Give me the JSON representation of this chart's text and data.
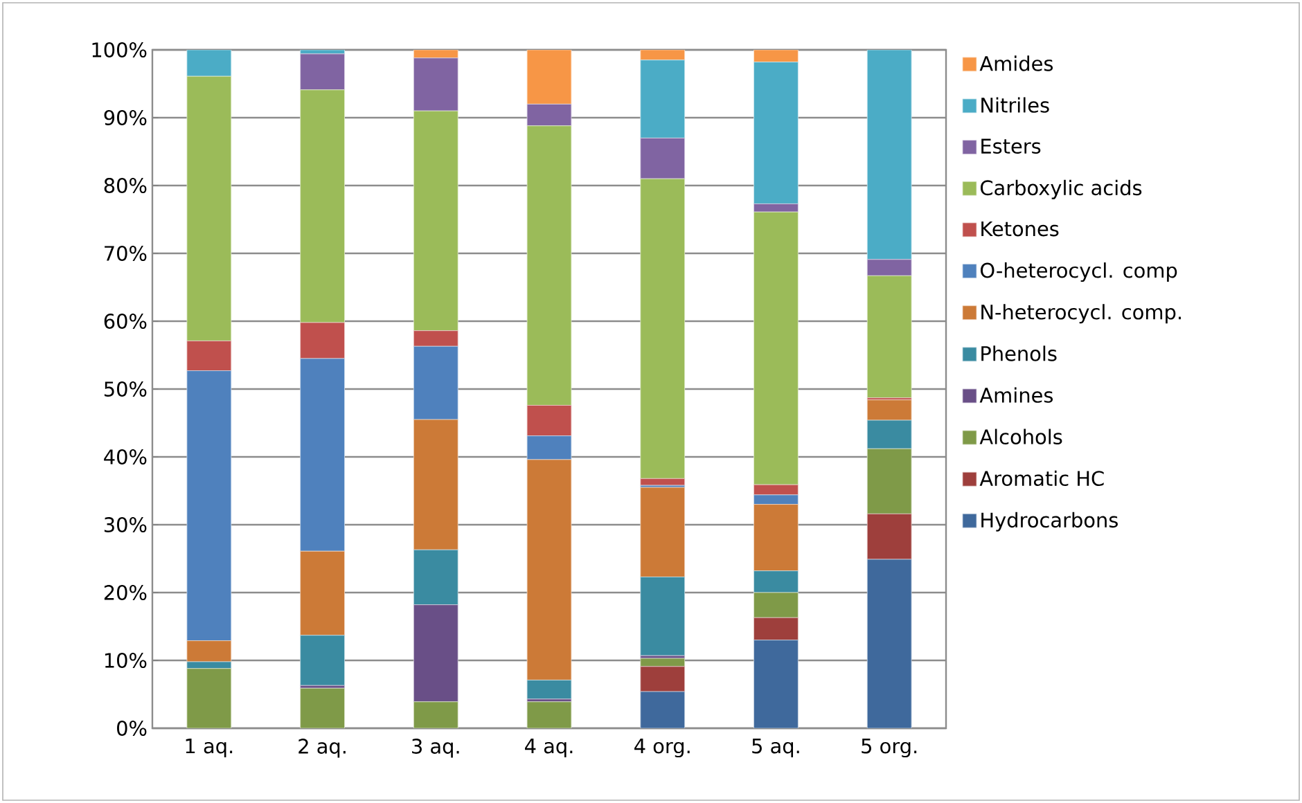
{
  "chart_data": {
    "type": "bar",
    "stacked": true,
    "categories": [
      "1 aq.",
      "2 aq.",
      "3 aq.",
      "4 aq.",
      "4 org.",
      "5 aq.",
      "5 org."
    ],
    "ylim": [
      0,
      100
    ],
    "yticks": [
      {
        "value": 0,
        "label": "0%"
      },
      {
        "value": 10,
        "label": "10%"
      },
      {
        "value": 20,
        "label": "20%"
      },
      {
        "value": 30,
        "label": "30%"
      },
      {
        "value": 40,
        "label": "40%"
      },
      {
        "value": 50,
        "label": "50%"
      },
      {
        "value": 60,
        "label": "60%"
      },
      {
        "value": 70,
        "label": "70%"
      },
      {
        "value": 80,
        "label": "80%"
      },
      {
        "value": 90,
        "label": "90%"
      },
      {
        "value": 100,
        "label": "100%"
      }
    ],
    "grid": "y",
    "legend": "right",
    "series": [
      {
        "name": "Hydrocarbons",
        "color": "#3f699c",
        "values": [
          0,
          0,
          0,
          0,
          5.4,
          13.0,
          24.9
        ]
      },
      {
        "name": "Aromatic HC",
        "color": "#9e3f3c",
        "values": [
          0,
          0,
          0,
          0,
          3.7,
          3.3,
          6.7
        ]
      },
      {
        "name": "Alcohols",
        "color": "#7f9a48",
        "values": [
          8.8,
          5.9,
          3.9,
          3.9,
          1.2,
          3.7,
          9.6
        ]
      },
      {
        "name": "Amines",
        "color": "#694f87",
        "values": [
          0,
          0.4,
          14.3,
          0.4,
          0.4,
          0,
          0
        ]
      },
      {
        "name": "Phenols",
        "color": "#3a8ba1",
        "values": [
          1.0,
          7.4,
          8.1,
          2.8,
          11.6,
          3.2,
          4.2
        ]
      },
      {
        "name": "N-heterocycl. comp.",
        "color": "#cc7a37",
        "values": [
          3.1,
          12.4,
          19.2,
          32.5,
          13.2,
          9.8,
          3.0
        ]
      },
      {
        "name": "O-heterocycl. comp",
        "color": "#4f81bd",
        "values": [
          39.8,
          28.4,
          10.8,
          3.5,
          0.3,
          1.4,
          0
        ]
      },
      {
        "name": "Ketones",
        "color": "#c0504d",
        "values": [
          4.4,
          5.3,
          2.3,
          4.5,
          1.0,
          1.5,
          0.3
        ]
      },
      {
        "name": "Carboxylic acids",
        "color": "#9bbb59",
        "values": [
          39.0,
          34.3,
          32.4,
          41.2,
          44.2,
          40.2,
          18.0
        ]
      },
      {
        "name": "Esters",
        "color": "#8064a2",
        "values": [
          0,
          5.3,
          7.8,
          3.2,
          6.0,
          1.2,
          2.4
        ]
      },
      {
        "name": "Nitriles",
        "color": "#4bacc6",
        "values": [
          3.9,
          0.6,
          0,
          0,
          11.5,
          20.9,
          30.9
        ]
      },
      {
        "name": "Amides",
        "color": "#f79646",
        "values": [
          0,
          0,
          1.2,
          8.0,
          1.5,
          1.8,
          0
        ]
      }
    ]
  }
}
